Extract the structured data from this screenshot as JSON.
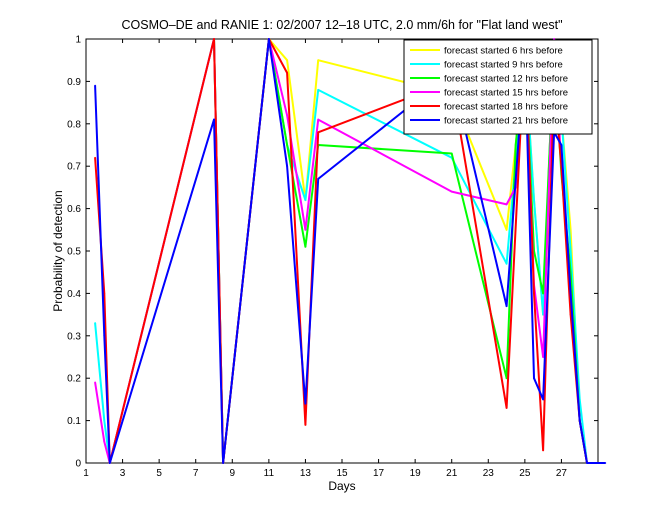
{
  "chart_data": {
    "type": "line",
    "title": "COSMO–DE and RANIE 1: 02/2007 12–18 UTC, 2.0 mm/6h for \"Flat land west\"",
    "xlabel": "Days",
    "ylabel": "Probability of detection",
    "xlim": [
      1,
      29
    ],
    "ylim": [
      0,
      1
    ],
    "xticks": [
      1,
      3,
      5,
      7,
      9,
      11,
      13,
      15,
      17,
      19,
      21,
      23,
      25,
      27
    ],
    "yticks": [
      0,
      0.1,
      0.2,
      0.3,
      0.4,
      0.5,
      0.6,
      0.7,
      0.8,
      0.9,
      1
    ],
    "legend_position": "top-right",
    "grid": false,
    "series": [
      {
        "name": "forecast started 6 hrs before",
        "color": "#ffff00",
        "points": [
          [
            8,
            1
          ],
          [
            8.5,
            0
          ],
          [
            11,
            1
          ],
          [
            12,
            0.95
          ],
          [
            13,
            0.62
          ],
          [
            13.7,
            0.95
          ],
          [
            21,
            0.87
          ],
          [
            24,
            0.55
          ],
          [
            24.5,
            0.75
          ],
          [
            25,
            0.96
          ],
          [
            25.5,
            0.62
          ],
          [
            26,
            0.35
          ],
          [
            26.6,
            1
          ],
          [
            27,
            0.82
          ],
          [
            27.5,
            0.55
          ],
          [
            28,
            0.1
          ],
          [
            28.4,
            0
          ]
        ]
      },
      {
        "name": "forecast started 9 hrs before",
        "color": "#00ffff",
        "points": [
          [
            1.5,
            0.33
          ],
          [
            2,
            0.1
          ],
          [
            2.3,
            0
          ],
          [
            8,
            1
          ],
          [
            8.5,
            0
          ],
          [
            11,
            1
          ],
          [
            12,
            0.75
          ],
          [
            13,
            0.62
          ],
          [
            13.7,
            0.88
          ],
          [
            21,
            0.72
          ],
          [
            24,
            0.47
          ],
          [
            25,
            0.96
          ],
          [
            25.5,
            0.62
          ],
          [
            26,
            0.35
          ],
          [
            26.6,
            1
          ],
          [
            27,
            0.82
          ],
          [
            27.5,
            0.5
          ],
          [
            28,
            0.15
          ],
          [
            28.4,
            0
          ]
        ]
      },
      {
        "name": "forecast started 12 hrs before",
        "color": "#00ff00",
        "points": [
          [
            8,
            1
          ],
          [
            8.5,
            0
          ],
          [
            11,
            1
          ],
          [
            12,
            0.75
          ],
          [
            13,
            0.51
          ],
          [
            13.7,
            0.75
          ],
          [
            21,
            0.73
          ],
          [
            24,
            0.2
          ],
          [
            24.5,
            0.75
          ],
          [
            25,
            0.97
          ],
          [
            25.5,
            0.5
          ],
          [
            26,
            0.4
          ],
          [
            26.6,
            0.97
          ],
          [
            27,
            0.68
          ],
          [
            27.5,
            0.45
          ],
          [
            28,
            0.1
          ],
          [
            28.4,
            0
          ]
        ]
      },
      {
        "name": "forecast started 15 hrs before",
        "color": "#ff00ff",
        "points": [
          [
            1.5,
            0.19
          ],
          [
            2,
            0.05
          ],
          [
            2.3,
            0
          ],
          [
            8,
            1
          ],
          [
            8.5,
            0
          ],
          [
            11,
            1
          ],
          [
            12,
            0.82
          ],
          [
            13,
            0.55
          ],
          [
            13.7,
            0.81
          ],
          [
            21,
            0.64
          ],
          [
            24,
            0.61
          ],
          [
            24.5,
            0.65
          ],
          [
            25,
            0.98
          ],
          [
            25.5,
            0.42
          ],
          [
            26,
            0.25
          ],
          [
            26.6,
            1
          ],
          [
            27,
            0.7
          ],
          [
            27.5,
            0.4
          ],
          [
            28,
            0.1
          ],
          [
            28.4,
            0
          ]
        ]
      },
      {
        "name": "forecast started 18 hrs before",
        "color": "#ff0000",
        "points": [
          [
            1.5,
            0.72
          ],
          [
            2,
            0.4
          ],
          [
            2.3,
            0
          ],
          [
            8,
            1
          ],
          [
            8.5,
            0
          ],
          [
            11,
            1
          ],
          [
            12,
            0.92
          ],
          [
            13,
            0.09
          ],
          [
            13.7,
            0.78
          ],
          [
            21,
            0.9
          ],
          [
            24,
            0.13
          ],
          [
            25,
            0.99
          ],
          [
            25.5,
            0.4
          ],
          [
            26,
            0.03
          ],
          [
            26.6,
            0.9
          ],
          [
            27,
            0.7
          ],
          [
            27.5,
            0.35
          ],
          [
            28,
            0.1
          ],
          [
            28.4,
            0
          ]
        ]
      },
      {
        "name": "forecast started 21 hrs before",
        "color": "#0000ff",
        "points": [
          [
            1.5,
            0.89
          ],
          [
            2,
            0.3
          ],
          [
            2.3,
            0
          ],
          [
            8,
            0.81
          ],
          [
            8.5,
            0
          ],
          [
            11,
            1
          ],
          [
            12,
            0.7
          ],
          [
            13,
            0.14
          ],
          [
            13.7,
            0.67
          ],
          [
            21,
            0.92
          ],
          [
            24,
            0.37
          ],
          [
            25,
            0.97
          ],
          [
            25.5,
            0.2
          ],
          [
            26,
            0.15
          ],
          [
            26.6,
            0.78
          ],
          [
            27,
            0.75
          ],
          [
            27.5,
            0.4
          ],
          [
            28,
            0.1
          ],
          [
            28.4,
            0
          ],
          [
            29.4,
            0
          ]
        ]
      }
    ]
  }
}
